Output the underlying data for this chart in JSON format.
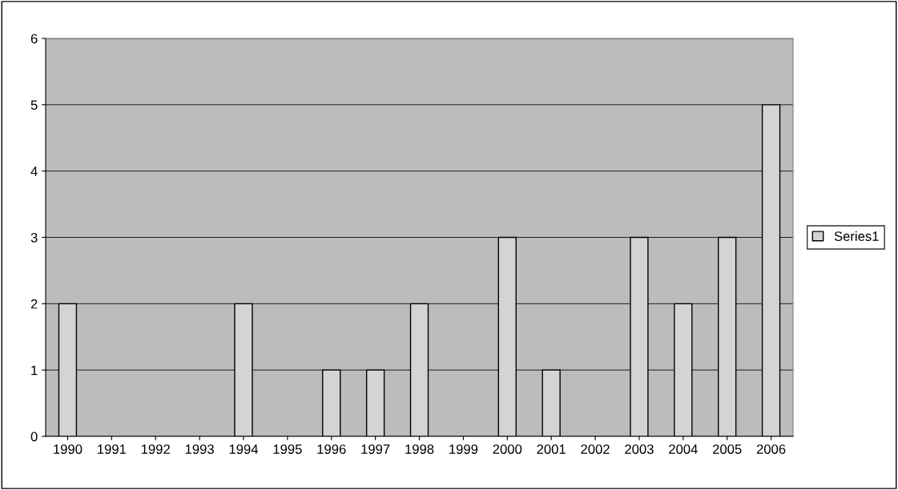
{
  "chart_data": {
    "type": "bar",
    "categories": [
      "1990",
      "1991",
      "1992",
      "1993",
      "1994",
      "1995",
      "1996",
      "1997",
      "1998",
      "1999",
      "2000",
      "2001",
      "2002",
      "2003",
      "2004",
      "2005",
      "2006"
    ],
    "series": [
      {
        "name": "Series1",
        "color": "#d4d4d4",
        "values": [
          2,
          0,
          0,
          0,
          2,
          0,
          1,
          1,
          2,
          0,
          3,
          1,
          0,
          3,
          2,
          3,
          5
        ]
      }
    ],
    "ylim": [
      0,
      6
    ],
    "yticks": [
      0,
      1,
      2,
      3,
      4,
      5,
      6
    ],
    "grid": "y",
    "legend": "right"
  }
}
